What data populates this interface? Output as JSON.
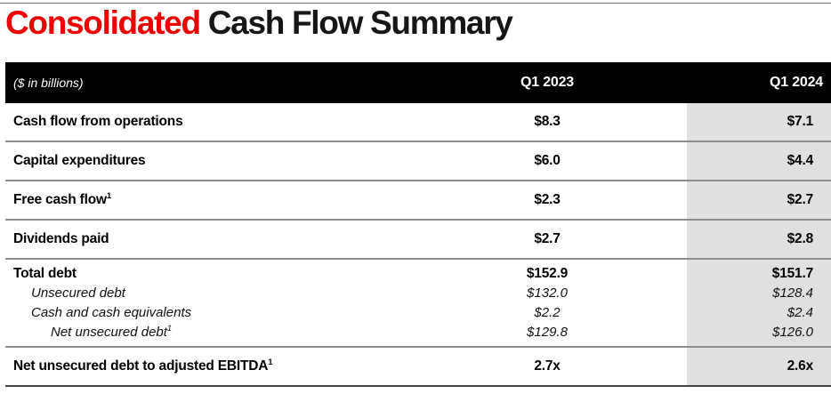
{
  "title": {
    "highlight": "Consolidated",
    "rest": "Cash Flow Summary"
  },
  "colors": {
    "accent_red": "#ee0000",
    "header_bg": "#000000",
    "header_text": "#ffffff",
    "highlight_column_bg": "#e0e0e0",
    "divider": "#8d8d8d",
    "bottom_border": "#454545"
  },
  "table": {
    "unit_note": "($ in billions)",
    "columns": [
      {
        "label": "Q1 2023"
      },
      {
        "label": "Q1 2024"
      }
    ],
    "rows": [
      {
        "label": "Cash flow from operations",
        "q1_2023": "$8.3",
        "q1_2024": "$7.1"
      },
      {
        "label": "Capital expenditures",
        "q1_2023": "$6.0",
        "q1_2024": "$4.4"
      },
      {
        "label": "Free cash flow",
        "footnote": "1",
        "q1_2023": "$2.3",
        "q1_2024": "$2.7"
      },
      {
        "label": "Dividends paid",
        "q1_2023": "$2.7",
        "q1_2024": "$2.8"
      }
    ],
    "debt_group": {
      "lines": [
        {
          "label": "Total debt",
          "style": "bold",
          "indent": 0,
          "q1_2023": "$152.9",
          "q1_2024": "$151.7"
        },
        {
          "label": "Unsecured debt",
          "style": "italic",
          "indent": 1,
          "q1_2023": "$132.0",
          "q1_2024": "$128.4"
        },
        {
          "label": "Cash and cash equivalents",
          "style": "italic",
          "indent": 1,
          "q1_2023": "$2.2",
          "q1_2024": "$2.4"
        },
        {
          "label": "Net unsecured debt",
          "footnote": "1",
          "style": "italic",
          "indent": 2,
          "q1_2023": "$129.8",
          "q1_2024": "$126.0"
        }
      ]
    },
    "ratio_row": {
      "label": "Net unsecured debt to adjusted EBITDA",
      "footnote": "1",
      "q1_2023": "2.7x",
      "q1_2024": "2.6x"
    }
  }
}
